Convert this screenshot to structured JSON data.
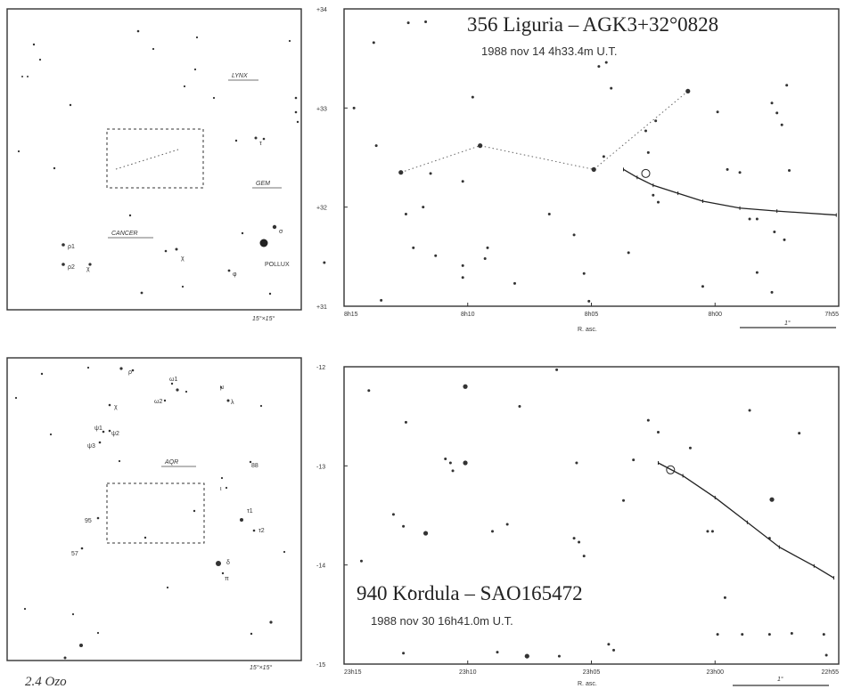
{
  "page": {
    "footer_note": "2.4 Ozo"
  },
  "chart_data": [
    {
      "type": "scatter",
      "panel": "finder-top",
      "corner_label": "15°×15°",
      "constellation_labels": [
        "LYNX",
        "GEM",
        "CANCER"
      ],
      "star_labels": [
        "ρ1",
        "ρ2",
        "χ",
        "χ",
        "φ",
        "τ",
        "σ",
        "POLLUX"
      ],
      "legend": "none",
      "grid": false
    },
    {
      "type": "scatter",
      "panel": "detail-top",
      "title": "356 Liguria  –  AGK3+32°0828",
      "subtitle": "1988 nov 14   4h33.4m U.T.",
      "xlabel": "R. asc.",
      "ylabel": "",
      "x_ticks": [
        "8h15",
        "8h10",
        "8h05",
        "8h00",
        "7h55"
      ],
      "y_ticks": [
        "+34",
        "+33",
        "+32",
        "+31"
      ],
      "xlim": [
        "8h15",
        "7h55"
      ],
      "ylim": [
        31,
        34
      ],
      "scale_bar": "1°",
      "grid": false,
      "legend": "none",
      "track": [
        {
          "x": 8.0617,
          "y": 32.38
        },
        {
          "x": 8.0525,
          "y": 32.3
        },
        {
          "x": 8.0417,
          "y": 32.22
        },
        {
          "x": 8.025,
          "y": 32.14
        },
        {
          "x": 8.0083,
          "y": 32.06
        },
        {
          "x": 7.9833,
          "y": 31.99
        },
        {
          "x": 7.9583,
          "y": 31.96
        },
        {
          "x": 7.9183,
          "y": 31.92
        }
      ],
      "track_marker": {
        "x": 8.0467,
        "y": 32.34
      },
      "dashed_lines": [
        [
          {
            "x": 8.2117,
            "y": 32.35
          },
          {
            "x": 8.1583,
            "y": 32.62
          },
          {
            "x": 8.0817,
            "y": 32.38
          },
          {
            "x": 8.0183,
            "y": 33.17
          }
        ]
      ],
      "stars": [
        {
          "x": 8.23,
          "y": 33.66
        },
        {
          "x": 8.2067,
          "y": 33.86
        },
        {
          "x": 8.195,
          "y": 33.87
        },
        {
          "x": 8.2433,
          "y": 33.0
        },
        {
          "x": 8.2283,
          "y": 32.62
        },
        {
          "x": 8.2117,
          "y": 32.35,
          "m": 2
        },
        {
          "x": 8.1917,
          "y": 32.34
        },
        {
          "x": 8.2083,
          "y": 31.93
        },
        {
          "x": 8.1967,
          "y": 32.0
        },
        {
          "x": 8.2033,
          "y": 31.59
        },
        {
          "x": 8.1883,
          "y": 31.51
        },
        {
          "x": 8.17,
          "y": 31.41
        },
        {
          "x": 8.17,
          "y": 31.29
        },
        {
          "x": 8.1533,
          "y": 31.59
        },
        {
          "x": 8.155,
          "y": 31.48
        },
        {
          "x": 8.1583,
          "y": 32.62,
          "m": 2
        },
        {
          "x": 8.17,
          "y": 32.26
        },
        {
          "x": 8.1633,
          "y": 33.11
        },
        {
          "x": 8.135,
          "y": 31.23
        },
        {
          "x": 8.225,
          "y": 31.06
        },
        {
          "x": 8.2633,
          "y": 31.44
        },
        {
          "x": 8.1117,
          "y": 31.93
        },
        {
          "x": 8.0817,
          "y": 32.38,
          "m": 2
        },
        {
          "x": 8.095,
          "y": 31.72
        },
        {
          "x": 8.0883,
          "y": 31.33
        },
        {
          "x": 8.085,
          "y": 31.05
        },
        {
          "x": 8.0783,
          "y": 33.42
        },
        {
          "x": 8.07,
          "y": 33.2
        },
        {
          "x": 8.075,
          "y": 32.51
        },
        {
          "x": 8.0583,
          "y": 31.54
        },
        {
          "x": 8.045,
          "y": 32.55
        },
        {
          "x": 8.0467,
          "y": 32.77
        },
        {
          "x": 8.04,
          "y": 32.87
        },
        {
          "x": 8.0417,
          "y": 32.12
        },
        {
          "x": 8.0383,
          "y": 32.05
        },
        {
          "x": 8.0183,
          "y": 33.17,
          "m": 2
        },
        {
          "x": 8.0083,
          "y": 31.2
        },
        {
          "x": 7.9983,
          "y": 32.96
        },
        {
          "x": 7.9917,
          "y": 32.38
        },
        {
          "x": 7.9833,
          "y": 32.35
        },
        {
          "x": 7.9767,
          "y": 31.88
        },
        {
          "x": 7.9717,
          "y": 31.88
        },
        {
          "x": 7.9717,
          "y": 31.34
        },
        {
          "x": 7.9617,
          "y": 33.05
        },
        {
          "x": 7.9583,
          "y": 32.95
        },
        {
          "x": 7.955,
          "y": 32.83
        },
        {
          "x": 7.96,
          "y": 31.75
        },
        {
          "x": 7.9533,
          "y": 31.67
        },
        {
          "x": 7.9517,
          "y": 33.23
        },
        {
          "x": 7.95,
          "y": 32.37
        },
        {
          "x": 7.9617,
          "y": 31.14
        },
        {
          "x": 8.0733,
          "y": 33.46
        }
      ]
    },
    {
      "type": "scatter",
      "panel": "finder-bottom",
      "corner_label": "15°×15°",
      "constellation_labels": [
        "AQR"
      ],
      "star_labels": [
        "ρ",
        "χ",
        "ψ1",
        "ψ2",
        "ψ3",
        "ω1",
        "ω2",
        "μ",
        "λ",
        "τ1",
        "τ2",
        "δ",
        "π",
        "ι",
        "88",
        "95",
        "98",
        "99",
        "57"
      ],
      "legend": "none",
      "grid": false
    },
    {
      "type": "scatter",
      "panel": "detail-bottom",
      "title": "940 Kordula  –  SAO165472",
      "subtitle": "1988 nov 30   16h41.0m U.T.",
      "xlabel": "R. asc.",
      "ylabel": "",
      "x_ticks": [
        "23h15",
        "23h10",
        "23h05",
        "23h00",
        "22h55"
      ],
      "y_ticks": [
        "-12",
        "-13",
        "-14",
        "-15"
      ],
      "xlim": [
        "23h15",
        "22h55"
      ],
      "ylim": [
        -15,
        -12
      ],
      "scale_bar": "1°",
      "grid": false,
      "legend": "none",
      "track": [
        {
          "x": 23.0383,
          "y": -12.97
        },
        {
          "x": 23.0217,
          "y": -13.1
        },
        {
          "x": 23.0,
          "y": -13.32
        },
        {
          "x": 22.9783,
          "y": -13.57
        },
        {
          "x": 22.9567,
          "y": -13.82
        },
        {
          "x": 22.9333,
          "y": -14.01
        },
        {
          "x": 22.92,
          "y": -14.13
        }
      ],
      "track_marker": {
        "x": 23.03,
        "y": -13.04
      },
      "dashed_lines": [],
      "stars": [
        {
          "x": 23.2333,
          "y": -12.24
        },
        {
          "x": 23.2383,
          "y": -13.96
        },
        {
          "x": 23.2167,
          "y": -13.49
        },
        {
          "x": 23.21,
          "y": -13.61
        },
        {
          "x": 23.205,
          "y": -14.26
        },
        {
          "x": 23.21,
          "y": -14.89
        },
        {
          "x": 23.2083,
          "y": -12.56
        },
        {
          "x": 23.195,
          "y": -13.68,
          "m": 2
        },
        {
          "x": 23.1817,
          "y": -12.93
        },
        {
          "x": 23.1783,
          "y": -12.97
        },
        {
          "x": 23.1767,
          "y": -13.05
        },
        {
          "x": 23.1683,
          "y": -12.97,
          "m": 2
        },
        {
          "x": 23.1683,
          "y": -12.2,
          "m": 2
        },
        {
          "x": 23.15,
          "y": -13.66
        },
        {
          "x": 23.1467,
          "y": -14.88
        },
        {
          "x": 23.14,
          "y": -13.59
        },
        {
          "x": 23.1317,
          "y": -12.4
        },
        {
          "x": 23.1267,
          "y": -14.92,
          "m": 2
        },
        {
          "x": 23.1067,
          "y": -12.03
        },
        {
          "x": 23.105,
          "y": -14.92
        },
        {
          "x": 23.0933,
          "y": -12.97
        },
        {
          "x": 23.095,
          "y": -13.73
        },
        {
          "x": 23.0917,
          "y": -13.77
        },
        {
          "x": 23.0883,
          "y": -13.91
        },
        {
          "x": 23.0717,
          "y": -14.8
        },
        {
          "x": 23.0683,
          "y": -14.86
        },
        {
          "x": 23.0617,
          "y": -13.35
        },
        {
          "x": 23.055,
          "y": -12.94
        },
        {
          "x": 23.045,
          "y": -12.54
        },
        {
          "x": 23.0383,
          "y": -12.66
        },
        {
          "x": 23.0167,
          "y": -12.82
        },
        {
          "x": 23.005,
          "y": -13.66
        },
        {
          "x": 23.0017,
          "y": -13.66
        },
        {
          "x": 22.9933,
          "y": -14.33
        },
        {
          "x": 22.9983,
          "y": -14.7
        },
        {
          "x": 22.9817,
          "y": -14.7
        },
        {
          "x": 22.9767,
          "y": -12.44
        },
        {
          "x": 22.9617,
          "y": -13.34,
          "m": 2
        },
        {
          "x": 22.9633,
          "y": -13.73
        },
        {
          "x": 22.9633,
          "y": -14.7
        },
        {
          "x": 22.9483,
          "y": -14.69
        },
        {
          "x": 22.9433,
          "y": -12.67
        },
        {
          "x": 22.9267,
          "y": -14.7
        },
        {
          "x": 22.925,
          "y": -14.91
        }
      ]
    }
  ]
}
